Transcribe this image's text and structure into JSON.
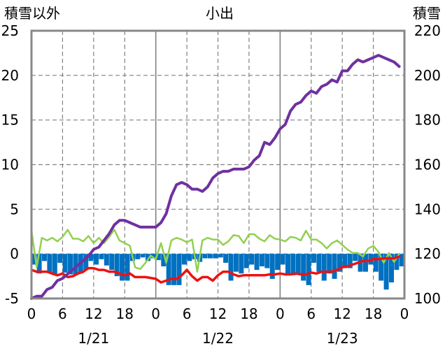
{
  "chart_data": {
    "type": "line",
    "title": "小出",
    "left_axis_label": "積雪以外",
    "right_axis_label": "積雪",
    "left_ylim": [
      -5,
      25
    ],
    "left_yticks": [
      "-5",
      "0",
      "5",
      "10",
      "15",
      "20",
      "25"
    ],
    "right_ylim": [
      100,
      220
    ],
    "right_yticks": [
      "100",
      "120",
      "140",
      "160",
      "180",
      "200",
      "220"
    ],
    "x_range": [
      0,
      72
    ],
    "x_tick_labels": [
      "0",
      "6",
      "12",
      "18",
      "0",
      "6",
      "12",
      "18",
      "0",
      "6",
      "12",
      "18",
      "0"
    ],
    "date_labels": [
      "1/21",
      "1/22",
      "1/23"
    ],
    "grid": true,
    "series": [
      {
        "axis": "left",
        "color": "#0070c0",
        "kind": "bar",
        "values": [
          -1.2,
          -2.2,
          -0.8,
          -2.1,
          -2.4,
          -1.0,
          -2.1,
          -2.3,
          -2.3,
          -2.2,
          -1.8,
          -0.8,
          -1.2,
          -0.6,
          -1.3,
          -1.8,
          -2.5,
          -3.0,
          -3.0,
          -0.8,
          -0.6,
          -0.4,
          -0.8,
          -0.5,
          -0.7,
          -1.4,
          -3.5,
          -3.5,
          -3.5,
          -1.2,
          -0.8,
          -0.6,
          -0.9,
          -0.5,
          -0.5,
          -0.5,
          -0.4,
          -1.0,
          -3.0,
          -2.0,
          -2.2,
          -1.6,
          -1.2,
          -1.8,
          -1.4,
          -1.6,
          -2.8,
          -1.8,
          -1.2,
          -2.4,
          -2.4,
          -2.2,
          -3.0,
          -3.5,
          -1.0,
          -2.0,
          -3.0,
          -2.2,
          -2.8,
          -2.0,
          -1.6,
          -1.6,
          -0.8,
          -2.0,
          -2.0,
          -1.2,
          -2.0,
          -3.0,
          -4.0,
          -3.2,
          -1.8,
          -1.4
        ]
      },
      {
        "axis": "left",
        "color": "#92d050",
        "values": [
          2.6,
          -1.5,
          1.8,
          1.5,
          1.8,
          1.4,
          1.9,
          2.7,
          1.7,
          1.7,
          1.4,
          2.0,
          1.2,
          1.8,
          1.2,
          1.9,
          2.7,
          1.5,
          1.2,
          0.9,
          -1.5,
          -1.7,
          -1.0,
          -0.2,
          -0.6,
          1.2,
          -1.0,
          1.5,
          1.8,
          1.6,
          1.3,
          1.6,
          -2.0,
          1.5,
          1.8,
          1.6,
          1.6,
          1.0,
          1.4,
          2.1,
          2.0,
          1.2,
          2.2,
          2.2,
          1.7,
          1.4,
          2.1,
          1.7,
          1.6,
          1.4,
          1.9,
          1.8,
          1.5,
          2.6,
          1.6,
          1.6,
          1.2,
          0.6,
          1.2,
          1.5,
          1.0,
          0.5,
          0.1,
          0.1,
          -0.3,
          0.6,
          0.9,
          0.2,
          -1.0,
          0.1,
          -0.9,
          0.0
        ]
      },
      {
        "axis": "left",
        "color": "#ee1111",
        "values": [
          -1.8,
          -2.0,
          -2.0,
          -2.0,
          -2.2,
          -2.4,
          -2.2,
          -2.6,
          -2.5,
          -2.2,
          -2.0,
          -1.6,
          -1.6,
          -1.8,
          -1.8,
          -2.0,
          -2.0,
          -2.2,
          -2.4,
          -2.2,
          -2.6,
          -2.6,
          -2.6,
          -2.7,
          -2.8,
          -3.2,
          -3.0,
          -2.8,
          -2.8,
          -2.4,
          -1.8,
          -2.5,
          -3.0,
          -2.6,
          -2.6,
          -3.0,
          -2.4,
          -2.0,
          -2.0,
          -2.3,
          -2.5,
          -2.4,
          -2.4,
          -2.4,
          -2.4,
          -2.4,
          -2.3,
          -2.3,
          -2.2,
          -2.3,
          -2.3,
          -2.2,
          -2.3,
          -2.3,
          -2.1,
          -2.2,
          -2.0,
          -2.0,
          -2.0,
          -1.8,
          -1.5,
          -1.4,
          -1.2,
          -1.0,
          -0.8,
          -0.8,
          -0.6,
          -0.6,
          -0.5,
          -0.5,
          -0.5,
          -0.3
        ]
      },
      {
        "axis": "right",
        "color": "#7030a0",
        "values": [
          100,
          101,
          101,
          104,
          105,
          108,
          109,
          111,
          113,
          115,
          117,
          119,
          122,
          123,
          126,
          129,
          133,
          135,
          135,
          134,
          133,
          132,
          132,
          132,
          132,
          134,
          138,
          146,
          151,
          152,
          151,
          149,
          149,
          148,
          150,
          154,
          156,
          157,
          157,
          158,
          158,
          158,
          159,
          162,
          164,
          170,
          169,
          172,
          176,
          178,
          184,
          187,
          188,
          191,
          193,
          192,
          195,
          196,
          198,
          197,
          202,
          202,
          205,
          207,
          206,
          207,
          208,
          209,
          208,
          207,
          206,
          204
        ]
      }
    ]
  }
}
